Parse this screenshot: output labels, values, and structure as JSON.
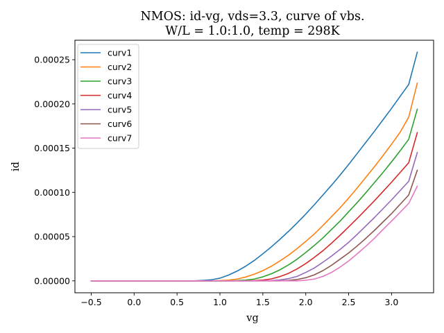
{
  "chart_data": {
    "type": "line",
    "title": [
      "NMOS: id-vg, vds=3.3, curve of vbs.",
      "W/L = 1.0:1.0, temp = 298K"
    ],
    "xlabel": "vg",
    "ylabel": "id",
    "xlim": [
      -0.69,
      3.49
    ],
    "ylim": [
      -1.35e-05,
      0.000272
    ],
    "x_ticks": [
      -0.5,
      0.0,
      0.5,
      1.0,
      1.5,
      2.0,
      2.5,
      3.0
    ],
    "x_tick_labels": [
      "−0.5",
      "0.0",
      "0.5",
      "1.0",
      "1.5",
      "2.0",
      "2.5",
      "3.0"
    ],
    "y_ticks": [
      0,
      5e-05,
      0.0001,
      0.00015,
      0.0002,
      0.00025
    ],
    "y_tick_labels": [
      "0.00000",
      "0.00005",
      "0.00010",
      "0.00015",
      "0.00020",
      "0.00025"
    ],
    "legend_position": "top-left",
    "grid": false,
    "x": [
      -0.5,
      0.5,
      0.7,
      0.8,
      0.9,
      1.0,
      1.1,
      1.2,
      1.3,
      1.4,
      1.5,
      1.6,
      1.7,
      1.8,
      1.9,
      2.0,
      2.1,
      2.2,
      2.3,
      2.4,
      2.5,
      2.6,
      2.7,
      2.8,
      2.9,
      3.0,
      3.1,
      3.2,
      3.3
    ],
    "series": [
      {
        "name": "curv1",
        "color": "#1f77b4",
        "values": [
          0,
          0,
          0,
          5e-07,
          1.2e-06,
          3e-06,
          6.5e-06,
          1.1e-05,
          1.65e-05,
          2.3e-05,
          3.05e-05,
          3.85e-05,
          4.7e-05,
          5.6e-05,
          6.55e-05,
          7.55e-05,
          8.6e-05,
          9.7e-05,
          0.000108,
          0.0001195,
          0.0001315,
          0.000144,
          0.0001565,
          0.000169,
          0.000182,
          0.000195,
          0.0002085,
          0.000222,
          0.0002585
        ]
      },
      {
        "name": "curv2",
        "color": "#ff7f0e",
        "values": [
          0,
          0,
          0,
          0,
          0,
          3e-07,
          8e-07,
          2e-06,
          4.3e-06,
          7.5e-06,
          1.15e-05,
          1.65e-05,
          2.25e-05,
          2.9e-05,
          3.65e-05,
          4.45e-05,
          5.3e-05,
          6.25e-05,
          7.25e-05,
          8.25e-05,
          9.35e-05,
          0.000105,
          0.000117,
          0.000129,
          0.0001415,
          0.0001545,
          0.000168,
          0.000185,
          0.0002235
        ]
      },
      {
        "name": "curv3",
        "color": "#2ca02c",
        "values": [
          0,
          0,
          0,
          0,
          0,
          0,
          0,
          3e-07,
          8e-07,
          2e-06,
          4.5e-06,
          8e-06,
          1.25e-05,
          1.8e-05,
          2.45e-05,
          3.2e-05,
          4e-05,
          4.85e-05,
          5.8e-05,
          6.75e-05,
          7.8e-05,
          8.85e-05,
          9.95e-05,
          0.000111,
          0.0001225,
          0.0001345,
          0.000147,
          0.00016,
          0.000194
        ]
      },
      {
        "name": "curv4",
        "color": "#d62728",
        "values": [
          0,
          0,
          0,
          0,
          0,
          0,
          0,
          0,
          0,
          3e-07,
          8e-07,
          2.2e-06,
          4.8e-06,
          8.5e-06,
          1.35e-05,
          1.95e-05,
          2.65e-05,
          3.4e-05,
          4.25e-05,
          5.15e-05,
          6.1e-05,
          7.05e-05,
          8.05e-05,
          9.05e-05,
          0.000101,
          0.0001115,
          0.0001225,
          0.0001335,
          0.0001675
        ]
      },
      {
        "name": "curv5",
        "color": "#9467bd",
        "values": [
          0,
          0,
          0,
          0,
          0,
          0,
          0,
          0,
          0,
          0,
          0,
          3e-07,
          1e-06,
          2.5e-06,
          5e-06,
          9.5e-06,
          1.45e-05,
          2.1e-05,
          2.8e-05,
          3.55e-05,
          4.35e-05,
          5.25e-05,
          6.2e-05,
          7.15e-05,
          8.15e-05,
          9.15e-05,
          0.000102,
          0.0001125,
          0.000145
        ]
      },
      {
        "name": "curv6",
        "color": "#8c564b",
        "values": [
          0,
          0,
          0,
          0,
          0,
          0,
          0,
          0,
          0,
          0,
          0,
          0,
          0,
          5e-07,
          1.5e-06,
          3.5e-06,
          6.8e-06,
          1.15e-05,
          1.75e-05,
          2.45e-05,
          3.15e-05,
          3.95e-05,
          4.8e-05,
          5.7e-05,
          6.65e-05,
          7.6e-05,
          8.65e-05,
          9.7e-05,
          0.000125
        ]
      },
      {
        "name": "curv7",
        "color": "#e377c2",
        "values": [
          0,
          0,
          0,
          0,
          0,
          0,
          0,
          0,
          0,
          0,
          0,
          0,
          0,
          0,
          0,
          7e-07,
          2e-06,
          5e-06,
          9.5e-06,
          1.55e-05,
          2.25e-05,
          3.05e-05,
          3.9e-05,
          4.8e-05,
          5.8e-05,
          6.75e-05,
          7.75e-05,
          8.75e-05,
          0.000107
        ]
      }
    ]
  }
}
